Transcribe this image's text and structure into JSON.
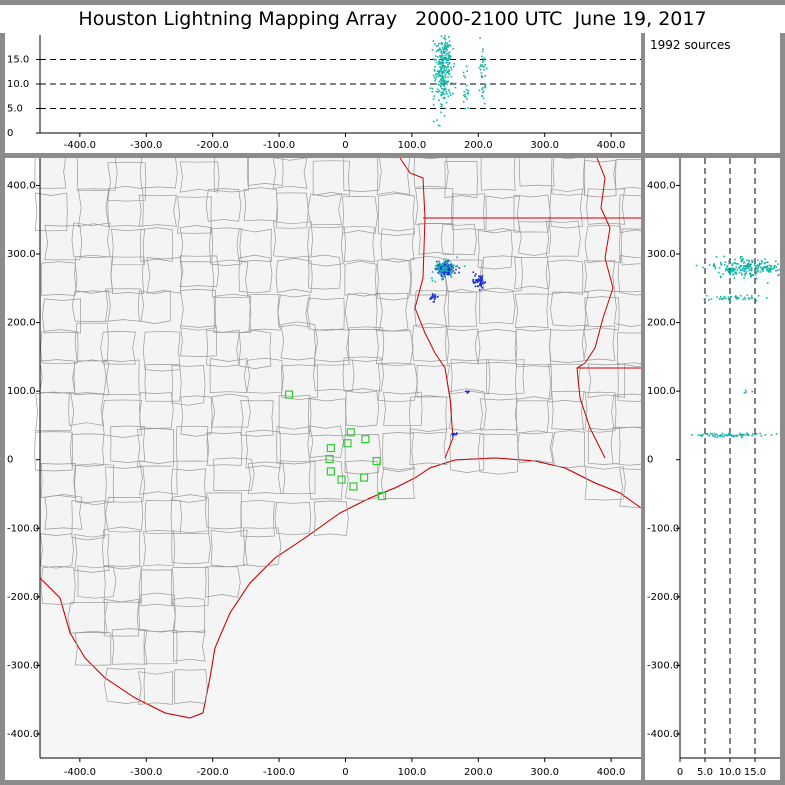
{
  "title": "Houston Lightning Mapping Array   2000-2100 UTC  June 19, 2017",
  "source_count_label": "1992 sources",
  "colors": {
    "border_frame": "#8c8c8c",
    "map_background": "#f4f4f4",
    "county_lines": "#999999",
    "state_coast_lines": "#cc0000",
    "station_marker": "#33cc33",
    "source_dense": "#1a2bd6",
    "source_sparse": "#11b3a6"
  },
  "chart_data": [
    {
      "type": "scatter",
      "panel": "altitude-vs-east-west",
      "xlim": [
        -460,
        445
      ],
      "ylim": [
        0,
        20
      ],
      "x_ticks": [
        "-400.0",
        "-300.0",
        "-200.0",
        "-100.0",
        "0",
        "100.0",
        "200.0",
        "300.0",
        "400.0"
      ],
      "x_tick_values": [
        -400,
        -300,
        -200,
        -100,
        0,
        100,
        200,
        300,
        400
      ],
      "y_ticks": [
        "0",
        "5.0",
        "10.0",
        "15.0"
      ],
      "y_tick_values": [
        0,
        5,
        10,
        15
      ],
      "dashed_y": [
        5,
        10,
        15
      ],
      "clusters": [
        {
          "x": 145,
          "y": 12.5,
          "sx": 7,
          "sy": 3.5,
          "n": 220,
          "color": "source_sparse"
        },
        {
          "x": 150,
          "y": 16.5,
          "sx": 4,
          "sy": 2,
          "n": 60,
          "color": "source_sparse"
        },
        {
          "x": 205,
          "y": 12,
          "sx": 3,
          "sy": 3.5,
          "n": 40,
          "color": "source_sparse"
        },
        {
          "x": 180,
          "y": 9,
          "sx": 2,
          "sy": 2,
          "n": 20,
          "color": "source_sparse"
        }
      ]
    },
    {
      "type": "scatter",
      "panel": "plan-view-map",
      "xlim": [
        -460,
        445
      ],
      "ylim": [
        -435,
        440
      ],
      "x_ticks": [
        "-400.0",
        "-300.0",
        "-200.0",
        "-100.0",
        "0",
        "100.0",
        "200.0",
        "300.0",
        "400.0"
      ],
      "x_tick_values": [
        -400,
        -300,
        -200,
        -100,
        0,
        100,
        200,
        300,
        400
      ],
      "y_ticks": [
        "400.0",
        "300.0",
        "200.0",
        "100.0",
        "0",
        "-100.0",
        "-200.0",
        "-300.0",
        "-400.0"
      ],
      "y_tick_values": [
        400,
        300,
        200,
        100,
        0,
        -100,
        -200,
        -300,
        -400
      ],
      "stations": [
        {
          "x": -85,
          "y": 95
        },
        {
          "x": 8,
          "y": 40
        },
        {
          "x": 30,
          "y": 30
        },
        {
          "x": 3,
          "y": 24
        },
        {
          "x": -22,
          "y": 17
        },
        {
          "x": -24,
          "y": 1
        },
        {
          "x": -22,
          "y": -17
        },
        {
          "x": -6,
          "y": -29
        },
        {
          "x": 47,
          "y": -2
        },
        {
          "x": 28,
          "y": -26
        },
        {
          "x": 12,
          "y": -39
        },
        {
          "x": 55,
          "y": -53
        }
      ],
      "clusters": [
        {
          "x": 148,
          "y": 280,
          "sx": 6,
          "sy": 5,
          "n": 180,
          "color": "source_dense"
        },
        {
          "x": 148,
          "y": 280,
          "sx": 9,
          "sy": 7,
          "n": 90,
          "color": "source_sparse"
        },
        {
          "x": 200,
          "y": 262,
          "sx": 4,
          "sy": 5,
          "n": 50,
          "color": "source_dense"
        },
        {
          "x": 130,
          "y": 237,
          "sx": 3,
          "sy": 3,
          "n": 20,
          "color": "source_dense"
        },
        {
          "x": 182,
          "y": 100,
          "sx": 1.5,
          "sy": 1.5,
          "n": 6,
          "color": "source_dense"
        },
        {
          "x": 163,
          "y": 38,
          "sx": 2,
          "sy": 1.5,
          "n": 10,
          "color": "source_dense"
        }
      ]
    },
    {
      "type": "scatter",
      "panel": "north-south-vs-altitude",
      "xlim": [
        0,
        20
      ],
      "ylim": [
        -435,
        440
      ],
      "x_ticks": [
        "0",
        "5.0",
        "10.0",
        "15.0"
      ],
      "x_tick_values": [
        0,
        5,
        10,
        15
      ],
      "y_ticks": [
        "400.0",
        "300.0",
        "200.0",
        "100.0",
        "0",
        "-100.0",
        "-200.0",
        "-300.0",
        "-400.0"
      ],
      "y_tick_values": [
        400,
        300,
        200,
        100,
        0,
        -100,
        -200,
        -300,
        -400
      ],
      "dashed_x": [
        5,
        10,
        15
      ],
      "clusters": [
        {
          "x": 13.5,
          "y": 280,
          "sx": 3.5,
          "sy": 7,
          "n": 220,
          "color": "source_sparse"
        },
        {
          "x": 11,
          "y": 237,
          "sx": 3,
          "sy": 2,
          "n": 40,
          "color": "source_sparse"
        },
        {
          "x": 10,
          "y": 37,
          "sx": 4,
          "sy": 1.5,
          "n": 70,
          "color": "source_sparse"
        },
        {
          "x": 13,
          "y": 100,
          "sx": 0.5,
          "sy": 1,
          "n": 4,
          "color": "source_sparse"
        }
      ]
    }
  ]
}
